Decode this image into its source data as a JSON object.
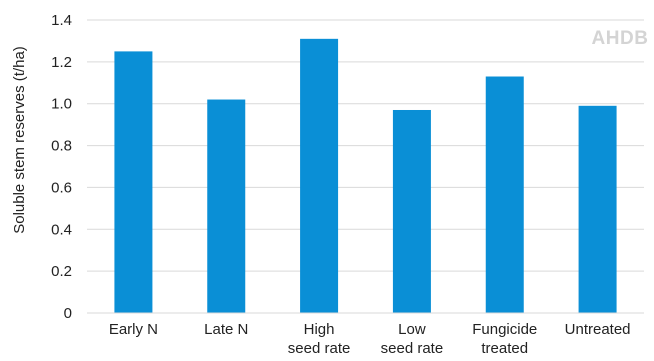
{
  "chart_data": {
    "type": "bar",
    "categories": [
      [
        "Early N"
      ],
      [
        "Late N"
      ],
      [
        "High",
        "seed rate"
      ],
      [
        "Low",
        "seed rate"
      ],
      [
        "Fungicide",
        "treated"
      ],
      [
        "Untreated"
      ]
    ],
    "values": [
      1.25,
      1.02,
      1.31,
      0.97,
      1.13,
      0.99
    ],
    "ylabel": "Soluble stem reserves (t/ha)",
    "ylim": [
      0,
      1.4
    ],
    "yticks": [
      "0",
      "0.2",
      "0.4",
      "0.6",
      "0.8",
      "1.0",
      "1.2",
      "1.4"
    ],
    "grid": true,
    "bar_color": "#0a8fd6",
    "grid_color": "#d9d9d9"
  },
  "watermark": "AHDB"
}
